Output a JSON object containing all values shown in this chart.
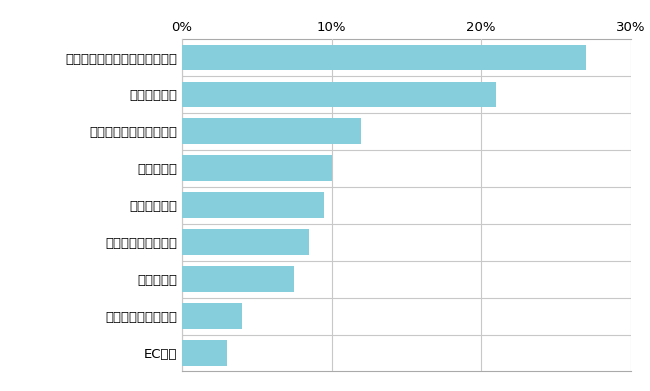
{
  "categories": [
    "EC多用",
    "スーパー・生協併用",
    "その他中心",
    "ドラッグストア中心",
    "コンビニ中心",
    "多業態併用",
    "スーパー・コンビニ併用",
    "スーパー中心",
    "スーパー・ドラッグストア併用"
  ],
  "values": [
    3.0,
    4.0,
    7.5,
    8.5,
    9.5,
    10.0,
    12.0,
    21.0,
    27.0
  ],
  "bar_color": "#87CEDC",
  "xlim": [
    0,
    30
  ],
  "xticks": [
    0,
    10,
    20,
    30
  ],
  "xtick_labels": [
    "0%",
    "10%",
    "20%",
    "30%"
  ],
  "background_color": "#ffffff",
  "grid_color": "#c8c8c8",
  "spine_color": "#aaaaaa",
  "bar_height": 0.7,
  "label_fontsize": 9.5,
  "tick_fontsize": 9.5
}
